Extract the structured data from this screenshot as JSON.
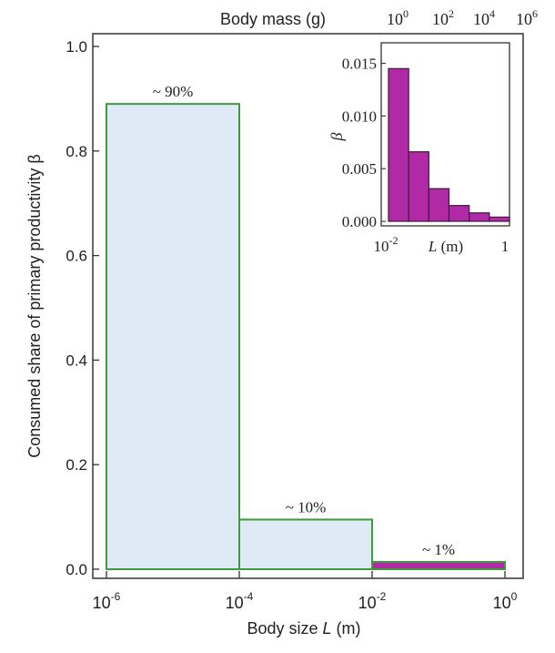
{
  "chart_data": [
    {
      "id": "main",
      "type": "bar",
      "xlabel_prefix": "Body size ",
      "xlabel_var": "L",
      "xlabel_suffix": " (m)",
      "ylabel": "Consumed share of primary productivity β",
      "top_axis_label": "Body mass (g)",
      "top_ticks": [
        {
          "base": "10",
          "exp": "0"
        },
        {
          "base": "10",
          "exp": "2"
        },
        {
          "base": "10",
          "exp": "4"
        },
        {
          "base": "10",
          "exp": "6"
        }
      ],
      "xscale": "log",
      "xlim": [
        1e-06,
        1
      ],
      "ylim": [
        0,
        1.0
      ],
      "yticks": [
        "0.0",
        "0.2",
        "0.4",
        "0.6",
        "0.8",
        "1.0"
      ],
      "xticks": [
        {
          "base": "10",
          "exp": "-6"
        },
        {
          "base": "10",
          "exp": "-4"
        },
        {
          "base": "10",
          "exp": "-2"
        },
        {
          "base": "10",
          "exp": "0"
        }
      ],
      "bins": [
        {
          "x0": 1e-06,
          "x1": 0.0001,
          "value": 0.89,
          "label": "~ 90%",
          "fill": "#deeaf6",
          "stroke": "#3f9a3f"
        },
        {
          "x0": 0.0001,
          "x1": 0.01,
          "value": 0.095,
          "label": "~ 10%",
          "fill": "#deeaf6",
          "stroke": "#3f9a3f"
        },
        {
          "x0": 0.01,
          "x1": 1,
          "value": 0.014,
          "label": "~ 1%",
          "fill": "#b02aa6",
          "stroke": "#3f9a3f"
        }
      ],
      "grid": false
    },
    {
      "id": "inset",
      "type": "bar",
      "xlabel_var": "L",
      "xlabel_suffix": " (m)",
      "ylabel": "β",
      "xscale": "log",
      "xlim": [
        0.01,
        1
      ],
      "ylim": [
        0,
        0.016
      ],
      "yticks": [
        "0.000",
        "0.005",
        "0.010",
        "0.015"
      ],
      "xtick_left": {
        "base": "10",
        "exp": "-2"
      },
      "xtick_right": "1",
      "bar_fill": "#b02aa6",
      "bar_stroke": "#3d1b3a",
      "values": [
        0.0145,
        0.0066,
        0.0031,
        0.0015,
        0.0008,
        0.0004
      ],
      "grid": false
    }
  ]
}
